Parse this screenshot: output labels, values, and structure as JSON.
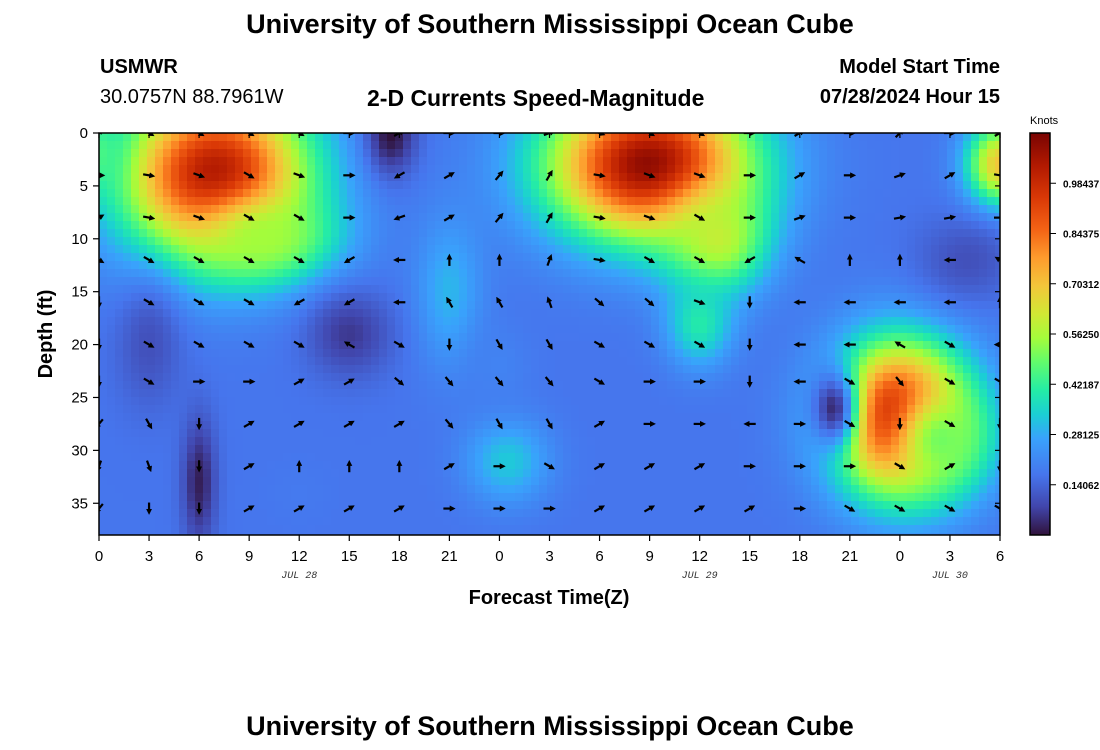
{
  "header": {
    "title": "University of Southern Mississippi Ocean Cube",
    "station_id": "USMWR",
    "coordinates": "30.0757N  88.7961W",
    "subtitle": "2-D Currents Speed-Magnitude",
    "model_start_label": "Model Start Time",
    "model_start_value": "07/28/2024 Hour 15"
  },
  "chart_data": {
    "type": "heatmap",
    "title": "2-D Currents Speed-Magnitude",
    "xlabel": "Forecast Time(Z)",
    "ylabel": "Depth (ft)",
    "x_tick_labels": [
      "0",
      "3",
      "6",
      "9",
      "12",
      "15",
      "18",
      "21",
      "0",
      "3",
      "6",
      "9",
      "12",
      "15",
      "18",
      "21",
      "0",
      "3",
      "6"
    ],
    "x_hours_range": [
      0,
      54
    ],
    "date_labels": [
      {
        "hour": 12,
        "text": "JUL 28"
      },
      {
        "hour": 36,
        "text": "JUL 29"
      },
      {
        "hour": 51,
        "text": "JUL 30"
      }
    ],
    "y_ticks": [
      0,
      5,
      10,
      15,
      20,
      25,
      30,
      35
    ],
    "ylim": [
      0,
      38
    ],
    "colorbar": {
      "unit": "Knots",
      "min": 0,
      "max": 1.125,
      "tick_labels": [
        "0.98437",
        "0.84375",
        "0.70312",
        "0.56250",
        "0.42187",
        "0.28125",
        "0.14062"
      ],
      "tick_values": [
        0.98437,
        0.84375,
        0.70312,
        0.5625,
        0.42187,
        0.28125,
        0.14062
      ]
    },
    "speed_peaks": [
      {
        "hour": 7,
        "depth": 4,
        "speed": 1.05,
        "radius_h": 5.5,
        "radius_d": 8
      },
      {
        "hour": 10,
        "depth": 10,
        "speed": 0.55,
        "radius_h": 4,
        "radius_d": 4
      },
      {
        "hour": 33,
        "depth": 3,
        "speed": 1.1,
        "radius_h": 6,
        "radius_d": 7
      },
      {
        "hour": 37,
        "depth": 10,
        "speed": 0.6,
        "radius_h": 3,
        "radius_d": 5
      },
      {
        "hour": 36,
        "depth": 18,
        "speed": 0.4,
        "radius_h": 2,
        "radius_d": 4
      },
      {
        "hour": 48,
        "depth": 27,
        "speed": 1.1,
        "radius_h": 4,
        "radius_d": 7
      },
      {
        "hour": 50.5,
        "depth": 29,
        "speed": 0.5,
        "radius_h": 3,
        "radius_d": 5
      },
      {
        "hour": 54,
        "depth": 3,
        "speed": 0.7,
        "radius_h": 2,
        "radius_d": 4
      },
      {
        "hour": 0,
        "depth": 2,
        "speed": 0.45,
        "radius_h": 1.5,
        "radius_d": 4
      },
      {
        "hour": 21,
        "depth": 15,
        "speed": 0.3,
        "radius_h": 2,
        "radius_d": 7
      },
      {
        "hour": 24.5,
        "depth": 31,
        "speed": 0.33,
        "radius_h": 2.5,
        "radius_d": 4
      },
      {
        "hour": 24,
        "depth": 22,
        "speed": 0.2,
        "radius_h": 2,
        "radius_d": 4
      },
      {
        "hour": 12,
        "depth": 34,
        "speed": 0.18,
        "radius_h": 2,
        "radius_d": 3
      }
    ],
    "speed_lows": [
      {
        "hour": 17.5,
        "depth": 0,
        "speed": 0.0,
        "radius_h": 1.5,
        "radius_d": 4
      },
      {
        "hour": 6,
        "depth": 33,
        "speed": 0.02,
        "radius_h": 1,
        "radius_d": 6
      },
      {
        "hour": 15,
        "depth": 19,
        "speed": 0.06,
        "radius_h": 2.5,
        "radius_d": 4
      },
      {
        "hour": 44,
        "depth": 26,
        "speed": 0.04,
        "radius_h": 1.5,
        "radius_d": 4
      },
      {
        "hour": 52,
        "depth": 12,
        "speed": 0.1,
        "radius_h": 3,
        "radius_d": 4
      },
      {
        "hour": 3,
        "depth": 20,
        "speed": 0.1,
        "radius_h": 2,
        "radius_d": 6
      }
    ],
    "background_speed": 0.17,
    "arrow_hours": [
      0,
      3,
      6,
      9,
      12,
      15,
      18,
      21,
      24,
      27,
      30,
      33,
      36,
      39,
      42,
      45,
      48,
      51,
      54
    ],
    "arrow_depths": [
      0,
      4,
      8,
      12,
      16,
      20,
      23.5,
      27.5,
      31.5,
      35.5
    ],
    "arrow_directions_deg": [
      [
        45,
        120,
        120,
        120,
        120,
        90,
        60,
        90,
        90,
        70,
        110,
        120,
        120,
        90,
        60,
        90,
        45,
        90,
        60
      ],
      [
        90,
        100,
        110,
        120,
        110,
        90,
        240,
        60,
        40,
        30,
        100,
        110,
        110,
        90,
        60,
        90,
        70,
        60,
        100
      ],
      [
        60,
        100,
        110,
        120,
        120,
        90,
        250,
        60,
        40,
        30,
        100,
        110,
        120,
        90,
        70,
        90,
        80,
        80,
        90
      ],
      [
        120,
        120,
        120,
        120,
        120,
        240,
        270,
        0,
        0,
        20,
        100,
        120,
        120,
        240,
        300,
        0,
        0,
        270,
        300
      ],
      [
        180,
        120,
        120,
        120,
        240,
        240,
        270,
        330,
        330,
        340,
        130,
        130,
        110,
        180,
        270,
        270,
        270,
        270,
        0
      ],
      [
        180,
        120,
        120,
        120,
        120,
        300,
        120,
        180,
        150,
        150,
        120,
        120,
        120,
        180,
        270,
        270,
        300,
        120,
        270
      ],
      [
        180,
        120,
        90,
        90,
        60,
        60,
        130,
        140,
        140,
        140,
        120,
        90,
        90,
        180,
        270,
        120,
        140,
        120,
        120
      ],
      [
        220,
        150,
        180,
        60,
        60,
        60,
        60,
        140,
        150,
        150,
        60,
        90,
        90,
        270,
        90,
        120,
        180,
        120,
        180
      ],
      [
        200,
        160,
        180,
        60,
        0,
        0,
        0,
        60,
        90,
        120,
        60,
        60,
        60,
        90,
        90,
        90,
        120,
        60,
        180
      ],
      [
        220,
        180,
        180,
        60,
        60,
        60,
        60,
        90,
        90,
        90,
        60,
        60,
        60,
        60,
        90,
        120,
        120,
        120,
        120
      ]
    ]
  },
  "footer": {
    "title": "University of Southern Mississippi Ocean Cube"
  }
}
